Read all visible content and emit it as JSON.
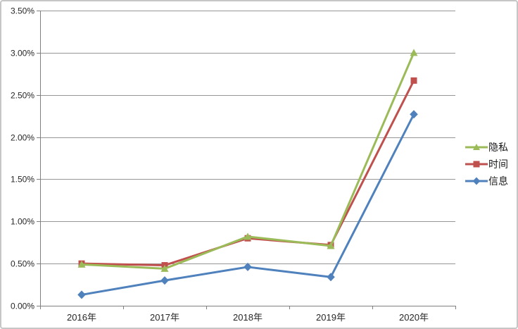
{
  "chart_data": {
    "type": "line",
    "title": "",
    "xlabel": "",
    "ylabel": "",
    "categories": [
      "2016年",
      "2017年",
      "2018年",
      "2019年",
      "2020年"
    ],
    "series": [
      {
        "id": "privacy",
        "name": "隐私",
        "color": "#9BBB59",
        "marker": "triangle",
        "values": [
          0.49,
          0.44,
          0.82,
          0.71,
          3.0
        ]
      },
      {
        "id": "time",
        "name": "时间",
        "color": "#C0504D",
        "marker": "square",
        "values": [
          0.5,
          0.48,
          0.8,
          0.72,
          2.67
        ]
      },
      {
        "id": "information",
        "name": "信息",
        "color": "#4F81BD",
        "marker": "diamond",
        "values": [
          0.13,
          0.3,
          0.46,
          0.34,
          2.27
        ]
      }
    ],
    "ylim": [
      0,
      3.5
    ],
    "y_tick_step": 0.5,
    "y_ticks": [
      "0.00%",
      "0.50%",
      "1.00%",
      "1.50%",
      "2.00%",
      "2.50%",
      "3.00%",
      "3.50%"
    ],
    "grid": "horizontal",
    "legend_position": "right",
    "colors": {
      "gridline": "#969696",
      "axis": "#7f7f7f",
      "tick_label": "#262626",
      "background": "#ffffff",
      "frame_border": "#c6c6c6"
    }
  }
}
